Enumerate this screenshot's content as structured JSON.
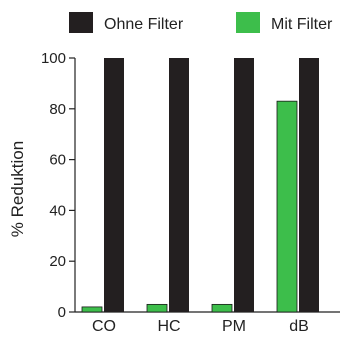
{
  "chart_data": {
    "type": "bar",
    "categories": [
      "CO",
      "HC",
      "PM",
      "dB"
    ],
    "series": [
      {
        "name": "Ohne Filter",
        "color": "#231f20",
        "values": [
          100,
          100,
          100,
          100
        ]
      },
      {
        "name": "Mit Filter",
        "color": "#3dbe4b",
        "values": [
          2,
          3,
          3,
          83
        ]
      }
    ],
    "xlabel": "",
    "ylabel": "% Reduktion",
    "ylim": [
      0,
      100
    ],
    "yticks": [
      0,
      20,
      40,
      60,
      80,
      100
    ],
    "grid": false,
    "legend_position": "top"
  }
}
